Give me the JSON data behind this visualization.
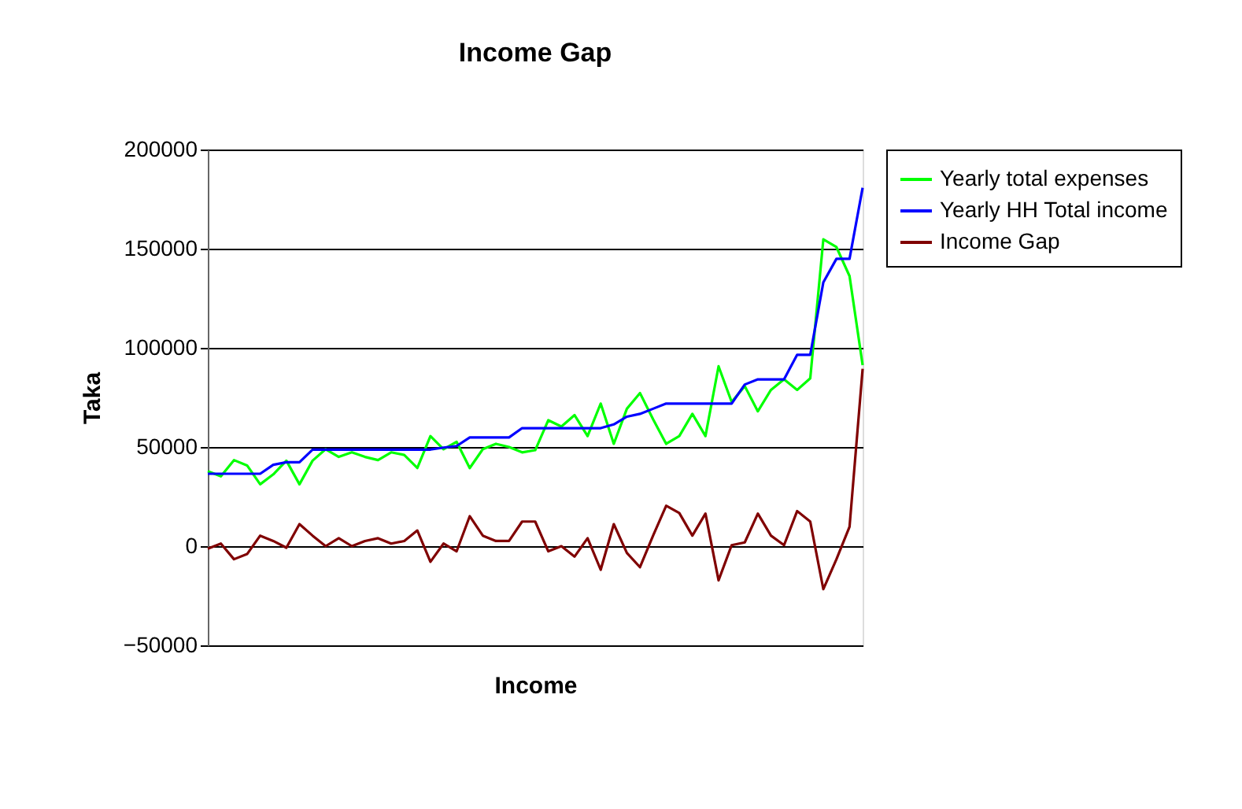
{
  "chart_data": {
    "type": "line",
    "title": "Income Gap",
    "xlabel": "Income",
    "ylabel": "Taka",
    "categories": [
      null,
      null,
      null,
      null,
      null,
      null,
      null,
      null,
      null,
      null,
      null,
      null,
      null,
      null,
      null,
      null,
      null,
      null,
      null,
      null,
      null,
      null,
      null,
      null,
      null,
      null,
      null,
      null,
      null,
      null,
      null,
      null,
      null,
      null,
      null,
      null,
      null,
      null,
      null,
      null,
      null,
      null,
      null,
      null,
      null,
      null,
      null,
      null,
      null,
      null,
      null
    ],
    "series": [
      {
        "name": "Yearly total expenses",
        "color": "#00ff00",
        "values": [
          37800,
          35200,
          43400,
          40700,
          31200,
          36200,
          43100,
          31200,
          43100,
          48900,
          45000,
          47300,
          45000,
          43400,
          47300,
          46000,
          39400,
          55500,
          48900,
          52600,
          39400,
          48900,
          51600,
          50000,
          47300,
          48400,
          63500,
          60300,
          66100,
          55500,
          71900,
          51600,
          69300,
          77200,
          64000,
          51600,
          55500,
          66700,
          55500,
          90700,
          72700,
          80700,
          68000,
          78800,
          84100,
          78800,
          84600,
          154700,
          150800,
          136200,
          91300
        ]
      },
      {
        "name": "Yearly HH Total income",
        "color": "#0000ff",
        "values": [
          36500,
          36500,
          36500,
          36500,
          36500,
          41000,
          42300,
          42300,
          48700,
          48700,
          48700,
          48700,
          48700,
          48700,
          48700,
          48700,
          48700,
          48700,
          49700,
          50500,
          54800,
          54800,
          54800,
          54800,
          59500,
          59500,
          59500,
          59500,
          59500,
          59500,
          59500,
          61400,
          65300,
          66700,
          69300,
          71900,
          71900,
          71900,
          71900,
          71900,
          71900,
          81500,
          84100,
          84100,
          84100,
          96500,
          96500,
          133000,
          144900,
          144900,
          180700
        ]
      },
      {
        "name": "Income Gap",
        "color": "#800000",
        "values": [
          -1300,
          1300,
          -6600,
          -4000,
          5300,
          2600,
          -800,
          11100,
          5300,
          0,
          4000,
          0,
          2600,
          4000,
          1300,
          2600,
          7900,
          -7900,
          1300,
          -2600,
          15100,
          5300,
          2600,
          2600,
          12400,
          12400,
          -2600,
          0,
          -5300,
          4000,
          -11900,
          11100,
          -3400,
          -10600,
          5300,
          20400,
          16700,
          5300,
          16400,
          -17200,
          500,
          1900,
          16400,
          5300,
          500,
          17700,
          12400,
          -21700,
          -6600,
          9800,
          89400
        ]
      }
    ],
    "ylim": [
      -50000,
      200000
    ],
    "yticks": [
      -50000,
      0,
      50000,
      100000,
      150000,
      200000
    ],
    "grid": "y",
    "legend": "right",
    "marker": "none",
    "line_style": "solid"
  }
}
